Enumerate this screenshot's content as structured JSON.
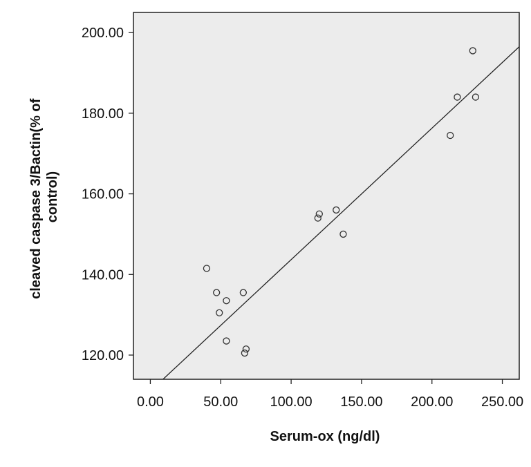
{
  "chart_data": {
    "type": "scatter",
    "xlabel": "Serum-ox (ng/dl)",
    "ylabel_lines": [
      "cleaved caspase 3/Bactin(% of",
      "control)"
    ],
    "xlim": [
      -12,
      262
    ],
    "ylim": [
      114,
      205
    ],
    "x_ticks": [
      0,
      50,
      100,
      150,
      200,
      250
    ],
    "x_tick_labels": [
      "0.00",
      "50.00",
      "100.00",
      "150.00",
      "200.00",
      "250.00"
    ],
    "y_ticks": [
      120,
      140,
      160,
      180,
      200
    ],
    "y_tick_labels": [
      "120.00",
      "140.00",
      "160.00",
      "180.00",
      "200.00"
    ],
    "grid": false,
    "background": "#ececec",
    "marker_color": "#333333",
    "points": [
      {
        "x": 40,
        "y": 141.5
      },
      {
        "x": 47,
        "y": 135.5
      },
      {
        "x": 49,
        "y": 130.5
      },
      {
        "x": 54,
        "y": 133.5
      },
      {
        "x": 54,
        "y": 123.5
      },
      {
        "x": 66,
        "y": 135.5
      },
      {
        "x": 67,
        "y": 120.5
      },
      {
        "x": 68,
        "y": 121.5
      },
      {
        "x": 119,
        "y": 154
      },
      {
        "x": 120,
        "y": 155
      },
      {
        "x": 132,
        "y": 156
      },
      {
        "x": 137,
        "y": 150
      },
      {
        "x": 213,
        "y": 174.5
      },
      {
        "x": 218,
        "y": 184
      },
      {
        "x": 229,
        "y": 195.5
      },
      {
        "x": 231,
        "y": 184
      }
    ],
    "fit_line": {
      "x": [
        9,
        262
      ],
      "y": [
        114,
        196.5
      ]
    }
  }
}
